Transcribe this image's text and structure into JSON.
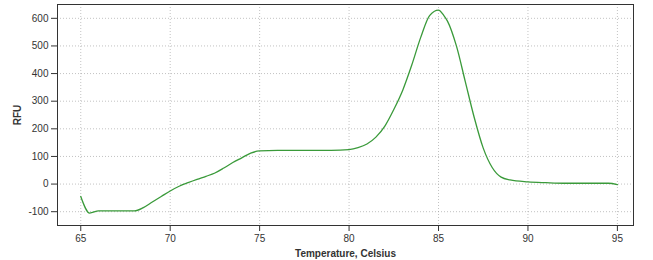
{
  "chart_data": {
    "type": "line",
    "x_label": "Temperature, Celsius",
    "y_label": "RFU",
    "x": [
      65,
      65.5,
      66,
      67,
      68,
      68.5,
      69,
      69.5,
      70,
      70.5,
      71,
      71.5,
      72,
      72.5,
      73,
      73.5,
      74,
      74.5,
      75,
      76,
      77,
      78,
      79,
      80,
      80.5,
      81,
      81.5,
      82,
      82.5,
      83,
      83.5,
      84,
      84.5,
      85,
      85.3,
      85.5,
      86,
      86.5,
      87,
      87.5,
      88,
      88.5,
      89,
      90,
      91,
      92,
      93,
      94,
      94.5,
      95
    ],
    "values": [
      -45,
      -105,
      -97,
      -97,
      -97,
      -85,
      -65,
      -45,
      -25,
      -8,
      5,
      17,
      28,
      40,
      58,
      78,
      95,
      112,
      120,
      122,
      122,
      122,
      122,
      125,
      132,
      145,
      170,
      210,
      270,
      340,
      430,
      530,
      610,
      630,
      610,
      590,
      500,
      370,
      240,
      130,
      60,
      25,
      15,
      8,
      5,
      3,
      3,
      3,
      3,
      -2
    ],
    "color": "#3a9a3a",
    "xlim": [
      63.7,
      95.9
    ],
    "xticks": [
      65,
      70,
      75,
      80,
      85,
      90,
      95
    ],
    "ylim": [
      -150,
      650
    ],
    "yticks": [
      -100,
      0,
      100,
      200,
      300,
      400,
      500,
      600
    ],
    "grid": true
  }
}
